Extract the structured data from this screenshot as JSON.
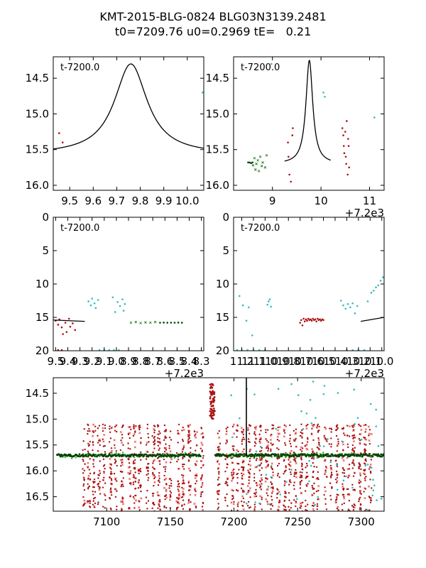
{
  "title": {
    "line1": "KMT-2015-BLG-0824 BLG03N3139.2481",
    "line2": "t0=7209.76 u0=0.2969 tE=   0.21"
  },
  "colors": {
    "model": "#000000",
    "red": "#aa1111",
    "cyan": "#33bbbb",
    "green": "#117711",
    "darkgreen": "#004400"
  },
  "chart_data": [
    {
      "panel": "top-left",
      "type": "line",
      "annotation": "t-7200.0",
      "xlim": [
        9.43,
        10.07
      ],
      "ylim": [
        16.07,
        14.2
      ],
      "xticks": [
        9.5,
        9.6,
        9.7,
        9.8,
        9.9,
        10.0
      ],
      "xtick_labels": [
        "9.5",
        "9.6",
        "9.7",
        "9.8",
        "9.9",
        "10.0"
      ],
      "yticks": [
        14.5,
        15.0,
        15.5,
        16.0
      ],
      "ytick_labels": [
        "14.5",
        "15.0",
        "15.5",
        "16.0"
      ],
      "offset_label": "",
      "model": {
        "t0": 9.76,
        "base": 15.57,
        "amp": 1.27,
        "width": 0.085,
        "tmin": 9.43,
        "tmax": 10.07
      },
      "points": [
        {
          "x": 9.455,
          "y": 15.27,
          "c": "red"
        },
        {
          "x": 9.47,
          "y": 15.4,
          "c": "red"
        },
        {
          "x": 10.065,
          "y": 14.7,
          "c": "cyan"
        }
      ]
    },
    {
      "panel": "top-right",
      "type": "line",
      "annotation": "t-7200.0",
      "xlim": [
        8.2,
        11.3
      ],
      "ylim": [
        16.07,
        14.2
      ],
      "xticks": [
        9,
        10,
        11
      ],
      "xtick_labels": [
        "9",
        "10",
        "11"
      ],
      "yticks": [
        14.5,
        15.0,
        15.5,
        16.0
      ],
      "ytick_labels": [
        "14.5",
        "15.0",
        "15.5",
        "16.0"
      ],
      "offset_label": "+7.2e3",
      "model": {
        "t0": 9.76,
        "base": 15.7,
        "amp": 1.45,
        "width": 0.085,
        "tmin": 9.25,
        "tmax": 10.2
      },
      "points": [
        {
          "x": 9.32,
          "y": 15.4,
          "c": "red"
        },
        {
          "x": 9.33,
          "y": 15.6,
          "c": "red"
        },
        {
          "x": 9.35,
          "y": 15.85,
          "c": "red"
        },
        {
          "x": 9.38,
          "y": 15.95,
          "c": "red"
        },
        {
          "x": 9.41,
          "y": 15.3,
          "c": "red"
        },
        {
          "x": 9.42,
          "y": 15.2,
          "c": "red"
        },
        {
          "x": 10.44,
          "y": 15.2,
          "c": "red"
        },
        {
          "x": 10.46,
          "y": 15.3,
          "c": "red"
        },
        {
          "x": 10.47,
          "y": 15.45,
          "c": "red"
        },
        {
          "x": 10.48,
          "y": 15.55,
          "c": "red"
        },
        {
          "x": 10.5,
          "y": 15.25,
          "c": "red"
        },
        {
          "x": 10.51,
          "y": 15.6,
          "c": "red"
        },
        {
          "x": 10.52,
          "y": 15.7,
          "c": "red"
        },
        {
          "x": 10.53,
          "y": 15.1,
          "c": "red"
        },
        {
          "x": 10.55,
          "y": 15.85,
          "c": "red"
        },
        {
          "x": 10.56,
          "y": 15.35,
          "c": "red"
        },
        {
          "x": 10.57,
          "y": 15.45,
          "c": "red"
        },
        {
          "x": 10.58,
          "y": 15.75,
          "c": "red"
        },
        {
          "x": 8.5,
          "y": 15.68,
          "c": "darkgreen"
        },
        {
          "x": 8.53,
          "y": 15.68,
          "c": "darkgreen"
        },
        {
          "x": 8.56,
          "y": 15.69,
          "c": "darkgreen"
        },
        {
          "x": 8.59,
          "y": 15.68,
          "c": "darkgreen"
        },
        {
          "x": 8.6,
          "y": 15.72,
          "c": "green"
        },
        {
          "x": 8.63,
          "y": 15.62,
          "c": "green"
        },
        {
          "x": 8.65,
          "y": 15.78,
          "c": "green"
        },
        {
          "x": 8.67,
          "y": 15.7,
          "c": "green"
        },
        {
          "x": 8.7,
          "y": 15.65,
          "c": "green"
        },
        {
          "x": 8.72,
          "y": 15.8,
          "c": "green"
        },
        {
          "x": 8.75,
          "y": 15.6,
          "c": "green"
        },
        {
          "x": 8.78,
          "y": 15.73,
          "c": "green"
        },
        {
          "x": 8.8,
          "y": 15.68,
          "c": "green"
        },
        {
          "x": 8.85,
          "y": 15.75,
          "c": "green"
        },
        {
          "x": 8.88,
          "y": 15.58,
          "c": "green"
        },
        {
          "x": 8.98,
          "y": 14.3,
          "c": "cyan"
        },
        {
          "x": 10.05,
          "y": 14.7,
          "c": "cyan"
        },
        {
          "x": 10.08,
          "y": 14.76,
          "c": "cyan"
        },
        {
          "x": 11.1,
          "y": 15.05,
          "c": "cyan"
        },
        {
          "x": 11.2,
          "y": 14.2,
          "c": "cyan"
        }
      ]
    },
    {
      "panel": "middle-left",
      "type": "scatter",
      "annotation": "t-7200.0",
      "xlim": [
        9.52,
        8.28
      ],
      "ylim": [
        20,
        0
      ],
      "xticks": [
        9.5,
        9.4,
        9.3,
        9.2,
        9.1,
        9.0,
        8.9,
        8.8,
        8.7,
        8.6,
        8.5,
        8.4,
        8.3
      ],
      "xtick_labels": [
        "9.5",
        "9.4",
        "9.3",
        "9.2",
        "9.1",
        "9.0",
        "8.9",
        "8.8",
        "8.7",
        "8.6",
        "8.5",
        "8.4",
        "8.3"
      ],
      "yticks": [
        0,
        5,
        10,
        15,
        20
      ],
      "ytick_labels": [
        "0",
        "5",
        "10",
        "15",
        "20"
      ],
      "offset_label": "+7.2e3",
      "model_segment": {
        "x": [
          9.52,
          9.26
        ],
        "y": [
          15.4,
          15.6
        ]
      },
      "points": [
        {
          "x": 9.5,
          "y": 15.5,
          "c": "red"
        },
        {
          "x": 9.48,
          "y": 16.1,
          "c": "red"
        },
        {
          "x": 9.47,
          "y": 15.3,
          "c": "red"
        },
        {
          "x": 9.45,
          "y": 16.5,
          "c": "red"
        },
        {
          "x": 9.44,
          "y": 17.5,
          "c": "red"
        },
        {
          "x": 9.42,
          "y": 15.8,
          "c": "red"
        },
        {
          "x": 9.41,
          "y": 17.2,
          "c": "red"
        },
        {
          "x": 9.39,
          "y": 15.2,
          "c": "red"
        },
        {
          "x": 9.38,
          "y": 16.4,
          "c": "red"
        },
        {
          "x": 9.36,
          "y": 15.9,
          "c": "red"
        },
        {
          "x": 9.34,
          "y": 16.9,
          "c": "red"
        },
        {
          "x": 9.23,
          "y": 12.6,
          "c": "cyan"
        },
        {
          "x": 9.21,
          "y": 13.2,
          "c": "cyan"
        },
        {
          "x": 9.2,
          "y": 12.2,
          "c": "cyan"
        },
        {
          "x": 9.18,
          "y": 12.9,
          "c": "cyan"
        },
        {
          "x": 9.17,
          "y": 13.6,
          "c": "cyan"
        },
        {
          "x": 9.15,
          "y": 12.4,
          "c": "cyan"
        },
        {
          "x": 9.03,
          "y": 12.0,
          "c": "cyan"
        },
        {
          "x": 9.01,
          "y": 14.2,
          "c": "cyan"
        },
        {
          "x": 8.99,
          "y": 12.7,
          "c": "cyan"
        },
        {
          "x": 8.97,
          "y": 13.3,
          "c": "cyan"
        },
        {
          "x": 8.95,
          "y": 12.3,
          "c": "cyan"
        },
        {
          "x": 8.94,
          "y": 14.0,
          "c": "cyan"
        },
        {
          "x": 8.93,
          "y": 13.0,
          "c": "cyan"
        },
        {
          "x": 8.88,
          "y": 15.8,
          "c": "green"
        },
        {
          "x": 8.84,
          "y": 15.7,
          "c": "green"
        },
        {
          "x": 8.8,
          "y": 15.85,
          "c": "green"
        },
        {
          "x": 8.76,
          "y": 15.75,
          "c": "green"
        },
        {
          "x": 8.72,
          "y": 15.8,
          "c": "green"
        },
        {
          "x": 8.68,
          "y": 15.7,
          "c": "green"
        },
        {
          "x": 8.64,
          "y": 15.8,
          "c": "darkgreen"
        },
        {
          "x": 8.61,
          "y": 15.78,
          "c": "darkgreen"
        },
        {
          "x": 8.58,
          "y": 15.8,
          "c": "darkgreen"
        },
        {
          "x": 8.55,
          "y": 15.79,
          "c": "darkgreen"
        },
        {
          "x": 8.52,
          "y": 15.8,
          "c": "darkgreen"
        },
        {
          "x": 8.49,
          "y": 15.78,
          "c": "darkgreen"
        },
        {
          "x": 8.46,
          "y": 15.8,
          "c": "darkgreen"
        },
        {
          "x": 9.48,
          "y": 19.9,
          "c": "red"
        },
        {
          "x": 9.45,
          "y": 19.9,
          "c": "red"
        },
        {
          "x": 9.14,
          "y": 19.9,
          "c": "cyan"
        },
        {
          "x": 9.1,
          "y": 19.9,
          "c": "cyan"
        },
        {
          "x": 9.06,
          "y": 19.9,
          "c": "cyan"
        },
        {
          "x": 9.02,
          "y": 19.9,
          "c": "cyan"
        },
        {
          "x": 8.98,
          "y": 19.9,
          "c": "cyan"
        }
      ]
    },
    {
      "panel": "middle-right",
      "type": "scatter",
      "annotation": "t-7200.0",
      "xlim": [
        11.27,
        9.98
      ],
      "ylim": [
        20,
        0
      ],
      "xticks": [
        11.2,
        11.1,
        11.0,
        10.9,
        10.8,
        10.7,
        10.6,
        10.5,
        10.4,
        10.3,
        10.2,
        10.1,
        10.0
      ],
      "xtick_labels": [
        "11.2",
        "11.1",
        "11.0",
        "10.9",
        "10.8",
        "10.7",
        "10.6",
        "10.5",
        "10.4",
        "10.3",
        "10.2",
        "10.1",
        "10.0"
      ],
      "yticks": [
        0,
        5,
        10,
        15,
        20
      ],
      "ytick_labels": [
        "0",
        "5",
        "10",
        "15",
        "20"
      ],
      "offset_label": "+7.2e3",
      "model_segment": {
        "x": [
          10.18,
          9.98
        ],
        "y": [
          15.6,
          15.0
        ]
      },
      "points": [
        {
          "x": 11.22,
          "y": 11.8,
          "c": "cyan"
        },
        {
          "x": 11.19,
          "y": 13.2,
          "c": "cyan"
        },
        {
          "x": 11.16,
          "y": 15.5,
          "c": "cyan"
        },
        {
          "x": 11.14,
          "y": 13.5,
          "c": "cyan"
        },
        {
          "x": 11.11,
          "y": 17.7,
          "c": "cyan"
        },
        {
          "x": 10.98,
          "y": 13.1,
          "c": "cyan"
        },
        {
          "x": 10.97,
          "y": 12.6,
          "c": "cyan"
        },
        {
          "x": 10.96,
          "y": 12.3,
          "c": "cyan"
        },
        {
          "x": 10.95,
          "y": 13.4,
          "c": "cyan"
        },
        {
          "x": 10.7,
          "y": 15.8,
          "c": "red"
        },
        {
          "x": 10.69,
          "y": 15.4,
          "c": "red"
        },
        {
          "x": 10.68,
          "y": 16.2,
          "c": "red"
        },
        {
          "x": 10.67,
          "y": 15.2,
          "c": "red"
        },
        {
          "x": 10.66,
          "y": 15.6,
          "c": "red"
        },
        {
          "x": 10.65,
          "y": 15.3,
          "c": "red"
        },
        {
          "x": 10.64,
          "y": 15.5,
          "c": "red"
        },
        {
          "x": 10.63,
          "y": 15.2,
          "c": "red"
        },
        {
          "x": 10.62,
          "y": 15.4,
          "c": "red"
        },
        {
          "x": 10.61,
          "y": 15.3,
          "c": "red"
        },
        {
          "x": 10.6,
          "y": 15.5,
          "c": "red"
        },
        {
          "x": 10.59,
          "y": 15.2,
          "c": "red"
        },
        {
          "x": 10.58,
          "y": 15.4,
          "c": "red"
        },
        {
          "x": 10.57,
          "y": 15.3,
          "c": "red"
        },
        {
          "x": 10.56,
          "y": 15.6,
          "c": "red"
        },
        {
          "x": 10.55,
          "y": 15.2,
          "c": "red"
        },
        {
          "x": 10.54,
          "y": 15.4,
          "c": "red"
        },
        {
          "x": 10.53,
          "y": 15.3,
          "c": "red"
        },
        {
          "x": 10.52,
          "y": 15.5,
          "c": "red"
        },
        {
          "x": 10.51,
          "y": 15.3,
          "c": "red"
        },
        {
          "x": 10.5,
          "y": 15.4,
          "c": "red"
        },
        {
          "x": 10.35,
          "y": 12.5,
          "c": "cyan"
        },
        {
          "x": 10.33,
          "y": 13.2,
          "c": "cyan"
        },
        {
          "x": 10.31,
          "y": 13.7,
          "c": "cyan"
        },
        {
          "x": 10.29,
          "y": 13.0,
          "c": "cyan"
        },
        {
          "x": 10.27,
          "y": 13.5,
          "c": "cyan"
        },
        {
          "x": 10.25,
          "y": 12.9,
          "c": "cyan"
        },
        {
          "x": 10.23,
          "y": 14.4,
          "c": "cyan"
        },
        {
          "x": 10.21,
          "y": 13.3,
          "c": "cyan"
        },
        {
          "x": 10.12,
          "y": 12.6,
          "c": "cyan"
        },
        {
          "x": 10.09,
          "y": 11.3,
          "c": "cyan"
        },
        {
          "x": 10.07,
          "y": 11.0,
          "c": "cyan"
        },
        {
          "x": 10.05,
          "y": 10.5,
          "c": "cyan"
        },
        {
          "x": 10.03,
          "y": 10.2,
          "c": "cyan"
        },
        {
          "x": 10.01,
          "y": 9.5,
          "c": "cyan"
        },
        {
          "x": 9.99,
          "y": 9.0,
          "c": "cyan"
        },
        {
          "x": 11.24,
          "y": 19.9,
          "c": "cyan"
        },
        {
          "x": 11.2,
          "y": 19.9,
          "c": "cyan"
        },
        {
          "x": 11.15,
          "y": 19.9,
          "c": "cyan"
        },
        {
          "x": 11.1,
          "y": 19.9,
          "c": "cyan"
        },
        {
          "x": 11.05,
          "y": 19.9,
          "c": "cyan"
        },
        {
          "x": 11.0,
          "y": 19.9,
          "c": "cyan"
        },
        {
          "x": 10.3,
          "y": 19.9,
          "c": "cyan"
        },
        {
          "x": 10.25,
          "y": 19.9,
          "c": "cyan"
        },
        {
          "x": 10.2,
          "y": 19.9,
          "c": "cyan"
        },
        {
          "x": 10.15,
          "y": 19.9,
          "c": "cyan"
        }
      ]
    },
    {
      "panel": "bottom",
      "type": "scatter",
      "annotation": "",
      "xlim": [
        7058,
        7318
      ],
      "ylim": [
        16.78,
        14.2
      ],
      "xticks": [
        7100,
        7150,
        7200,
        7250,
        7300
      ],
      "xtick_labels": [
        "7100",
        "7150",
        "7200",
        "7250",
        "7300"
      ],
      "yticks": [
        14.5,
        15.0,
        15.5,
        16.0,
        16.5
      ],
      "ytick_labels": [
        "14.5",
        "15.0",
        "15.5",
        "16.0",
        "16.5"
      ],
      "offset_label": "",
      "baseline_mag": 15.7,
      "spike": {
        "x": 7209.76,
        "y_top": 14.2,
        "y_bottom": 15.72
      },
      "generated_scatter": {
        "red_columns": [
          7082,
          7086,
          7090,
          7094,
          7098,
          7103,
          7107,
          7112,
          7118,
          7122,
          7126,
          7132,
          7137,
          7141,
          7146,
          7150,
          7156,
          7160,
          7165,
          7170,
          7175,
          7188,
          7194,
          7199,
          7203,
          7207,
          7212,
          7217,
          7221,
          7226,
          7230,
          7235,
          7240,
          7244,
          7248,
          7253,
          7257,
          7262,
          7266,
          7272,
          7276,
          7281,
          7286,
          7290,
          7294,
          7299,
          7303,
          7307
        ],
        "red_spread": [
          15.1,
          16.78
        ],
        "bright_red_range": [
          7181,
          7185
        ],
        "bright_red_mag": [
          14.3,
          15.0
        ],
        "cyan_region": [
          7195,
          7318
        ],
        "cyan_mag": [
          14.2,
          16.78
        ]
      }
    }
  ]
}
